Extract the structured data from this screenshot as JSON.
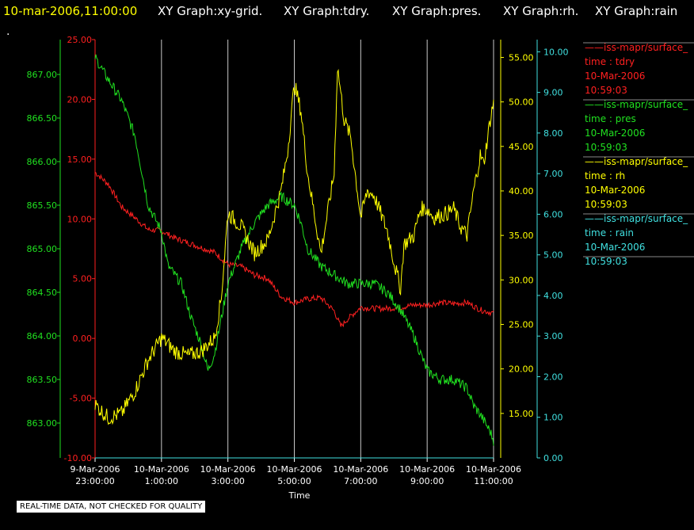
{
  "header": {
    "timestamp": "10-mar-2006,11:00:00",
    "titles": [
      "XY Graph:xy-grid.",
      "XY Graph:tdry.",
      "XY Graph:pres.",
      "XY Graph:rh.",
      "XY Graph:rain"
    ],
    "dot": "."
  },
  "notice": "REAL-TIME DATA, NOT CHECKED FOR QUALITY",
  "colors": {
    "background": "#000000",
    "header": "#ffff00",
    "tdry": "#ff2020",
    "pres": "#20e020",
    "rh": "#ffff00",
    "rain": "#40e0e0",
    "grid": "#c8c8c8",
    "text": "#ffffff"
  },
  "chart_data": {
    "type": "line",
    "xlabel": "Time",
    "x_ticks": [
      {
        "x": 0,
        "l1": "9-Mar-2006",
        "l2": "23:00:00"
      },
      {
        "x": 1,
        "l1": "10-Mar-2006",
        "l2": "1:00:00"
      },
      {
        "x": 2,
        "l1": "10-Mar-2006",
        "l2": "3:00:00"
      },
      {
        "x": 3,
        "l1": "10-Mar-2006",
        "l2": "5:00:00"
      },
      {
        "x": 4,
        "l1": "10-Mar-2006",
        "l2": "7:00:00"
      },
      {
        "x": 5,
        "l1": "10-Mar-2006",
        "l2": "9:00:00"
      },
      {
        "x": 6,
        "l1": "10-Mar-2006",
        "l2": "11:00:00"
      }
    ],
    "grid": true,
    "legend_position": "right",
    "axes": {
      "tdry": {
        "range": [
          -10,
          25
        ],
        "ticks": [
          "25.00",
          "20.00",
          "15.00",
          "10.00",
          "5.00",
          "0.00",
          "-5.00",
          "-10.00"
        ]
      },
      "pres": {
        "range": [
          862.6,
          867.4
        ],
        "ticks": [
          "867.00",
          "866.50",
          "866.00",
          "865.50",
          "865.00",
          "864.50",
          "864.00",
          "863.50",
          "863.00"
        ]
      },
      "rh": {
        "range": [
          10,
          57
        ],
        "ticks": [
          "55.00",
          "50.00",
          "45.00",
          "40.00",
          "35.00",
          "30.00",
          "25.00",
          "20.00",
          "15.00"
        ]
      },
      "rain": {
        "range": [
          0,
          10.3
        ],
        "ticks": [
          "10.00",
          "9.00",
          "8.00",
          "7.00",
          "6.00",
          "5.00",
          "4.00",
          "3.00",
          "2.00",
          "1.00",
          "0.00"
        ]
      }
    },
    "series": [
      {
        "key": "tdry",
        "name": "iss-mapr/surface_",
        "label": "time : tdry",
        "date": "10-Mar-2006",
        "time": "10:59:03",
        "points": [
          [
            0,
            13.9
          ],
          [
            0.2,
            12.9
          ],
          [
            0.4,
            11.0
          ],
          [
            0.6,
            10.1
          ],
          [
            0.8,
            9.1
          ],
          [
            1.0,
            9.0
          ],
          [
            1.2,
            8.4
          ],
          [
            1.4,
            8.0
          ],
          [
            1.6,
            7.6
          ],
          [
            1.8,
            7.2
          ],
          [
            2.0,
            6.2
          ],
          [
            2.2,
            6.0
          ],
          [
            2.4,
            5.3
          ],
          [
            2.6,
            5.0
          ],
          [
            2.8,
            3.5
          ],
          [
            3.0,
            3.0
          ],
          [
            3.2,
            3.3
          ],
          [
            3.4,
            3.4
          ],
          [
            3.6,
            2.3
          ],
          [
            3.7,
            1.0
          ],
          [
            3.8,
            1.6
          ],
          [
            4.0,
            2.6
          ],
          [
            4.2,
            2.5
          ],
          [
            4.4,
            2.5
          ],
          [
            4.6,
            2.6
          ],
          [
            4.8,
            2.8
          ],
          [
            5.0,
            2.8
          ],
          [
            5.2,
            3.0
          ],
          [
            5.4,
            2.9
          ],
          [
            5.6,
            3.0
          ],
          [
            5.8,
            2.4
          ],
          [
            6.0,
            2.1
          ]
        ],
        "noise": 0.25
      },
      {
        "key": "pres",
        "name": "iss-mapr/surface_",
        "label": "time : pres",
        "date": "10-Mar-2006",
        "time": "10:59:03",
        "points": [
          [
            0,
            867.2
          ],
          [
            0.15,
            867.0
          ],
          [
            0.4,
            866.7
          ],
          [
            0.6,
            866.3
          ],
          [
            0.8,
            865.5
          ],
          [
            1.0,
            865.2
          ],
          [
            1.1,
            864.8
          ],
          [
            1.3,
            864.6
          ],
          [
            1.45,
            864.2
          ],
          [
            1.6,
            863.9
          ],
          [
            1.7,
            863.6
          ],
          [
            1.8,
            863.8
          ],
          [
            1.9,
            864.2
          ],
          [
            2.0,
            864.6
          ],
          [
            2.2,
            865.0
          ],
          [
            2.4,
            865.3
          ],
          [
            2.6,
            865.5
          ],
          [
            2.8,
            865.6
          ],
          [
            3.0,
            865.5
          ],
          [
            3.1,
            865.3
          ],
          [
            3.2,
            865.0
          ],
          [
            3.4,
            864.8
          ],
          [
            3.6,
            864.7
          ],
          [
            3.8,
            864.6
          ],
          [
            4.0,
            864.6
          ],
          [
            4.2,
            864.6
          ],
          [
            4.4,
            864.5
          ],
          [
            4.6,
            864.3
          ],
          [
            4.8,
            864.0
          ],
          [
            5.0,
            863.6
          ],
          [
            5.2,
            863.5
          ],
          [
            5.4,
            863.5
          ],
          [
            5.6,
            863.4
          ],
          [
            5.7,
            863.2
          ],
          [
            5.8,
            863.1
          ],
          [
            5.95,
            862.9
          ],
          [
            6.0,
            862.8
          ]
        ],
        "noise": 0.06
      },
      {
        "key": "rh",
        "name": "iss-mapr/surface_",
        "label": "time : rh",
        "date": "10-Mar-2006",
        "time": "10:59:03",
        "points": [
          [
            0,
            16.0
          ],
          [
            0.2,
            14.5
          ],
          [
            0.4,
            15.0
          ],
          [
            0.6,
            17.5
          ],
          [
            0.8,
            21.0
          ],
          [
            1.0,
            23.5
          ],
          [
            1.2,
            22.0
          ],
          [
            1.4,
            21.5
          ],
          [
            1.6,
            22.0
          ],
          [
            1.8,
            23.5
          ],
          [
            1.9,
            28.0
          ],
          [
            2.0,
            37.5
          ],
          [
            2.2,
            36.0
          ],
          [
            2.4,
            33.0
          ],
          [
            2.6,
            34.5
          ],
          [
            2.8,
            40.0
          ],
          [
            2.9,
            44.5
          ],
          [
            3.0,
            52.0
          ],
          [
            3.1,
            49.0
          ],
          [
            3.2,
            42.0
          ],
          [
            3.4,
            33.0
          ],
          [
            3.6,
            42.0
          ],
          [
            3.65,
            54.0
          ],
          [
            3.75,
            48.0
          ],
          [
            3.85,
            46.0
          ],
          [
            4.0,
            37.0
          ],
          [
            4.1,
            40.0
          ],
          [
            4.2,
            39.5
          ],
          [
            4.4,
            35.5
          ],
          [
            4.5,
            32.0
          ],
          [
            4.6,
            29.0
          ],
          [
            4.65,
            34.0
          ],
          [
            4.8,
            35.0
          ],
          [
            4.9,
            38.0
          ],
          [
            5.0,
            38.0
          ],
          [
            5.1,
            37.0
          ],
          [
            5.3,
            37.5
          ],
          [
            5.4,
            38.0
          ],
          [
            5.5,
            36.0
          ],
          [
            5.6,
            35.0
          ],
          [
            5.7,
            40.0
          ],
          [
            5.8,
            44.0
          ],
          [
            5.85,
            43.0
          ],
          [
            5.95,
            48.0
          ],
          [
            6.0,
            50.0
          ]
        ],
        "noise": 0.9
      },
      {
        "key": "rain",
        "name": "iss-mapr/surface_",
        "label": "time : rain",
        "date": "10-Mar-2006",
        "time": "10:59:03",
        "points": [
          [
            0,
            0.0
          ],
          [
            6.0,
            0.0
          ]
        ],
        "noise": 0
      }
    ]
  }
}
